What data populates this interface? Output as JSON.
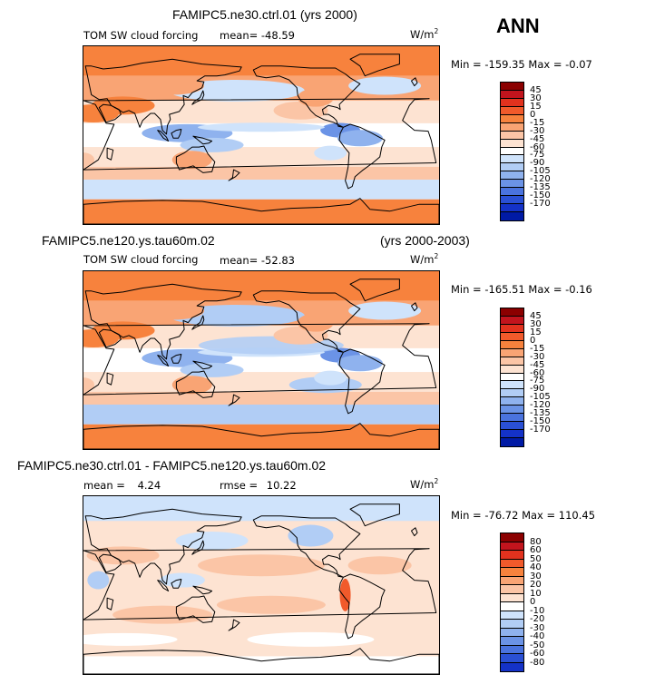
{
  "season": "ANN",
  "panels": [
    {
      "title": "FAMIPC5.ne30.ctrl.01 (yrs 2000)",
      "subtitle_left": "",
      "variable": "TOM SW cloud forcing",
      "mean_label": "mean=",
      "mean_value": "-48.59",
      "units_base": "W/m",
      "units_exp": "2",
      "minmax": "Min = -159.35 Max =  -0.07",
      "ticks": [
        "45",
        "30",
        "15",
        "0",
        "-15",
        "-30",
        "-45",
        "-60",
        "-75",
        "-90",
        "-105",
        "-120",
        "-135",
        "-150",
        "-170"
      ],
      "colors": [
        "#8b0000",
        "#c2141d",
        "#e2321e",
        "#f15a2b",
        "#f7823d",
        "#f9a474",
        "#fbc5a6",
        "#fde3d2",
        "#ffffff",
        "#cfe3fb",
        "#b1cdf5",
        "#8fb2ee",
        "#6b93e6",
        "#4a73de",
        "#2a50d4",
        "#1432c8",
        "#001aa5"
      ]
    },
    {
      "title": "FAMIPC5.ne120.ys.tau60m.02",
      "subtitle_left": "(yrs 2000-2003)",
      "variable": "TOM SW cloud forcing",
      "mean_label": "mean=",
      "mean_value": "-52.83",
      "units_base": "W/m",
      "units_exp": "2",
      "minmax": "Min = -165.51 Max =  -0.16",
      "ticks": [
        "45",
        "30",
        "15",
        "0",
        "-15",
        "-30",
        "-45",
        "-60",
        "-75",
        "-90",
        "-105",
        "-120",
        "-135",
        "-150",
        "-170"
      ],
      "colors": [
        "#8b0000",
        "#c2141d",
        "#e2321e",
        "#f15a2b",
        "#f7823d",
        "#f9a474",
        "#fbc5a6",
        "#fde3d2",
        "#ffffff",
        "#cfe3fb",
        "#b1cdf5",
        "#8fb2ee",
        "#6b93e6",
        "#4a73de",
        "#2a50d4",
        "#1432c8",
        "#001aa5"
      ]
    },
    {
      "title": "FAMIPC5.ne30.ctrl.01 - FAMIPC5.ne120.ys.tau60m.02",
      "subtitle_left": "",
      "variable": "",
      "mean_label": "mean =",
      "mean_value": "4.24",
      "rmse_label": "rmse =",
      "rmse_value": "10.22",
      "units_base": "W/m",
      "units_exp": "2",
      "minmax": "Min = -76.72 Max = 110.45",
      "ticks": [
        "80",
        "60",
        "50",
        "40",
        "30",
        "20",
        "10",
        "0",
        "-10",
        "-20",
        "-30",
        "-40",
        "-50",
        "-60",
        "-80"
      ],
      "colors": [
        "#8b0000",
        "#c2141d",
        "#e2321e",
        "#f15a2b",
        "#f7823d",
        "#f9a474",
        "#fbc5a6",
        "#fde3d2",
        "#ffffff",
        "#cfe3fb",
        "#b1cdf5",
        "#8fb2ee",
        "#6b93e6",
        "#4a73de",
        "#2a50d4",
        "#1432c8"
      ]
    }
  ],
  "chart_data": [
    {
      "type": "heatmap",
      "title": "FAMIPC5.ne30.ctrl.01 (yrs 2000)",
      "variable": "TOM SW cloud forcing",
      "units": "W/m2",
      "mean": -48.59,
      "min": -159.35,
      "max": -0.07,
      "contour_levels": [
        45,
        30,
        15,
        0,
        -15,
        -30,
        -45,
        -60,
        -75,
        -90,
        -105,
        -120,
        -135,
        -150,
        -170
      ]
    },
    {
      "type": "heatmap",
      "title": "FAMIPC5.ne120.ys.tau60m.02 (yrs 2000-2003)",
      "variable": "TOM SW cloud forcing",
      "units": "W/m2",
      "mean": -52.83,
      "min": -165.51,
      "max": -0.16,
      "contour_levels": [
        45,
        30,
        15,
        0,
        -15,
        -30,
        -45,
        -60,
        -75,
        -90,
        -105,
        -120,
        -135,
        -150,
        -170
      ]
    },
    {
      "type": "heatmap",
      "title": "FAMIPC5.ne30.ctrl.01 - FAMIPC5.ne120.ys.tau60m.02",
      "units": "W/m2",
      "mean": 4.24,
      "rmse": 10.22,
      "min": -76.72,
      "max": 110.45,
      "contour_levels": [
        80,
        60,
        50,
        40,
        30,
        20,
        10,
        0,
        -10,
        -20,
        -30,
        -40,
        -50,
        -60,
        -80
      ]
    }
  ]
}
